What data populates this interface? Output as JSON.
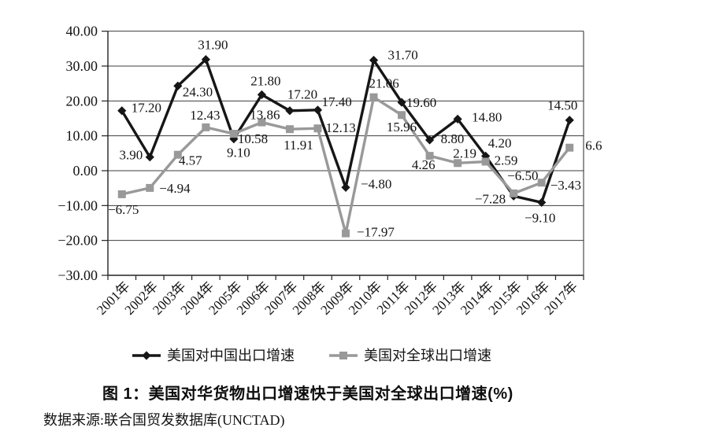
{
  "caption": {
    "text": "图 1：美国对华货物出口增速快于美国对全球出口增速(%)"
  },
  "source": {
    "text": "数据来源:联合国贸发数据库(UNCTAD)"
  },
  "chart_data": {
    "type": "line",
    "title": "图 1：美国对华货物出口增速快于美国对全球出口增速(%)",
    "source_note": "数据来源:联合国贸发数据库(UNCTAD)",
    "categories": [
      "2001年",
      "2002年",
      "2003年",
      "2004年",
      "2005年",
      "2006年",
      "2007年",
      "2008年",
      "2009年",
      "2010年",
      "2011年",
      "2012年",
      "2013年",
      "2014年",
      "2015年",
      "2016年",
      "2017年"
    ],
    "series": [
      {
        "name": "美国对中国出口增速",
        "color": "#161616",
        "marker": "diamond",
        "values": [
          17.2,
          3.9,
          24.3,
          31.9,
          9.1,
          21.8,
          17.2,
          17.4,
          -4.8,
          31.7,
          19.6,
          8.8,
          14.8,
          4.2,
          -7.28,
          -9.1,
          14.5
        ],
        "labels": [
          "17.20",
          "3.90",
          "24.30",
          "31.90",
          "9.10",
          "21.80",
          "17.20",
          "17.40",
          "−4.80",
          "31.70",
          "19.60",
          "8.80",
          "14.80",
          "4.20",
          "−7.28",
          "−9.10",
          "14.50"
        ],
        "label_pos": [
          [
            12,
            2,
            "start"
          ],
          [
            -9,
            3,
            "end"
          ],
          [
            6,
            13,
            "start"
          ],
          [
            9,
            -13,
            "middle"
          ],
          [
            6,
            23,
            "middle"
          ],
          [
            5,
            -12,
            "middle"
          ],
          [
            16,
            -15,
            "middle"
          ],
          [
            5,
            -5,
            "start"
          ],
          [
            19,
            1,
            "start"
          ],
          [
            18,
            -1,
            "start"
          ],
          [
            6,
            6,
            "start"
          ],
          [
            14,
            4,
            "start"
          ],
          [
            18,
            3,
            "start"
          ],
          [
            18,
            -11,
            "middle"
          ],
          [
            -10,
            9,
            "end"
          ],
          [
            -2,
            25,
            "middle"
          ],
          [
            -9,
            -13,
            "middle"
          ]
        ]
      },
      {
        "name": "美国对全球出口增速",
        "color": "#999999",
        "marker": "square",
        "values": [
          -6.75,
          -4.94,
          4.57,
          12.43,
          10.58,
          13.86,
          11.91,
          12.13,
          -17.97,
          21.06,
          15.96,
          4.26,
          2.19,
          2.59,
          -6.5,
          -3.43,
          6.6
        ],
        "labels": [
          "−6.75",
          "−4.94",
          "4.57",
          "12.43",
          "10.58",
          "13.86",
          "11.91",
          "12.13",
          "−17.97",
          "21.06",
          "15.96",
          "4.26",
          "2.19",
          "2.59",
          "−6.50",
          "−3.43",
          "6.6"
        ],
        "label_pos": [
          [
            2,
            25,
            "middle"
          ],
          [
            12,
            6,
            "start"
          ],
          [
            1,
            13,
            "start"
          ],
          [
            -1,
            -10,
            "middle"
          ],
          [
            5,
            12,
            "start"
          ],
          [
            4,
            -4,
            "middle"
          ],
          [
            11,
            26,
            "middle"
          ],
          [
            10,
            5,
            "start"
          ],
          [
            14,
            4,
            "start"
          ],
          [
            -6,
            -12,
            "start"
          ],
          [
            0,
            21,
            "middle"
          ],
          [
            7,
            17,
            "end"
          ],
          [
            9,
            -7,
            "middle"
          ],
          [
            11,
            4,
            "start"
          ],
          [
            -8,
            -17,
            "start"
          ],
          [
            11,
            9,
            "start"
          ],
          [
            20,
            3,
            "start"
          ]
        ]
      }
    ],
    "y_ticks": [
      {
        "value": 40,
        "label": "40.00"
      },
      {
        "value": 30,
        "label": "30.00"
      },
      {
        "value": 20,
        "label": "20.00"
      },
      {
        "value": 10,
        "label": "10.00"
      },
      {
        "value": 0,
        "label": "0.00"
      },
      {
        "value": -10,
        "label": "−10.00"
      },
      {
        "value": -20,
        "label": "−20.00"
      },
      {
        "value": -30,
        "label": "−30.00"
      }
    ],
    "ylim": [
      -30,
      40
    ],
    "grid": true,
    "grid_interval": 10,
    "legend_position": "bottom",
    "label_color": "#141414",
    "axis_color": "#222222",
    "grid_color": "#3d3d3d"
  }
}
